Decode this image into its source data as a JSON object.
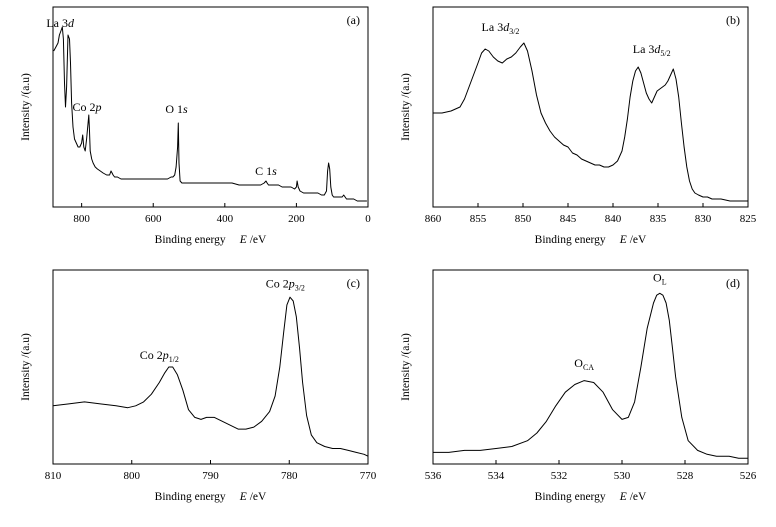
{
  "chart_data": [
    {
      "type": "line",
      "panel_label": "(a)",
      "xlabel_prefix": "Binding energy",
      "xlabel_var": "E",
      "xlabel_unit": "/eV",
      "ylabel": "Intensity /(a.u)",
      "xlim": [
        880,
        0
      ],
      "xticks": [
        800,
        600,
        400,
        200,
        0
      ],
      "ylim": [
        0,
        1
      ],
      "annotations": [
        {
          "text": "La 3",
          "ital": "d",
          "sub": "",
          "x": 860,
          "y": 0.9
        },
        {
          "text": "Co 2",
          "ital": "p",
          "sub": "",
          "x": 785,
          "y": 0.48
        },
        {
          "text": "O 1",
          "ital": "s",
          "sub": "",
          "x": 535,
          "y": 0.47
        },
        {
          "text": "C 1",
          "ital": "s",
          "sub": "",
          "x": 285,
          "y": 0.16
        }
      ],
      "x": [
        878,
        872,
        866,
        862,
        858,
        854,
        851,
        848,
        845,
        842,
        838,
        834,
        831,
        828,
        824,
        820,
        815,
        810,
        805,
        800,
        797,
        794,
        790,
        786,
        783,
        780,
        778,
        776,
        772,
        768,
        762,
        756,
        748,
        740,
        730,
        722,
        718,
        715,
        712,
        708,
        700,
        690,
        680,
        660,
        640,
        620,
        600,
        580,
        560,
        550,
        545,
        540,
        536,
        532,
        530,
        528,
        525,
        520,
        510,
        500,
        480,
        460,
        440,
        420,
        400,
        380,
        360,
        340,
        320,
        300,
        290,
        285,
        282,
        278,
        270,
        260,
        250,
        240,
        230,
        220,
        215,
        205,
        200,
        198,
        195,
        190,
        180,
        170,
        160,
        150,
        140,
        130,
        122,
        116,
        113,
        110,
        107,
        104,
        100,
        96,
        90,
        80,
        72,
        68,
        64,
        60,
        50,
        40,
        30,
        20,
        10,
        3
      ],
      "y": [
        0.78,
        0.8,
        0.82,
        0.86,
        0.88,
        0.9,
        0.84,
        0.62,
        0.5,
        0.6,
        0.86,
        0.84,
        0.72,
        0.52,
        0.4,
        0.34,
        0.32,
        0.3,
        0.3,
        0.32,
        0.36,
        0.3,
        0.28,
        0.34,
        0.4,
        0.46,
        0.38,
        0.28,
        0.24,
        0.22,
        0.2,
        0.19,
        0.18,
        0.17,
        0.16,
        0.16,
        0.18,
        0.17,
        0.16,
        0.15,
        0.15,
        0.14,
        0.14,
        0.14,
        0.14,
        0.14,
        0.14,
        0.14,
        0.14,
        0.15,
        0.15,
        0.16,
        0.2,
        0.3,
        0.42,
        0.22,
        0.13,
        0.12,
        0.12,
        0.12,
        0.12,
        0.12,
        0.12,
        0.12,
        0.12,
        0.12,
        0.11,
        0.11,
        0.11,
        0.11,
        0.12,
        0.13,
        0.12,
        0.11,
        0.11,
        0.11,
        0.11,
        0.1,
        0.1,
        0.1,
        0.1,
        0.09,
        0.1,
        0.13,
        0.1,
        0.08,
        0.07,
        0.07,
        0.07,
        0.07,
        0.07,
        0.06,
        0.06,
        0.08,
        0.18,
        0.22,
        0.19,
        0.1,
        0.06,
        0.05,
        0.05,
        0.05,
        0.05,
        0.06,
        0.05,
        0.04,
        0.04,
        0.04,
        0.03,
        0.03,
        0.03,
        0.03
      ]
    },
    {
      "type": "line",
      "panel_label": "(b)",
      "xlabel_prefix": "Binding energy",
      "xlabel_var": "E",
      "xlabel_unit": "/eV",
      "ylabel": "Intensity /(a.u)",
      "xlim": [
        860,
        825
      ],
      "xticks": [
        860,
        855,
        850,
        845,
        840,
        835,
        830,
        825
      ],
      "ylim": [
        0,
        1
      ],
      "annotations": [
        {
          "text": "La 3",
          "ital": "d",
          "sub": "3/2",
          "x": 852.5,
          "y": 0.88
        },
        {
          "text": "La 3",
          "ital": "d",
          "sub": "5/2",
          "x": 835.7,
          "y": 0.77
        }
      ],
      "x": [
        860,
        859,
        858,
        857,
        856.5,
        856,
        855.5,
        855,
        854.6,
        854.2,
        853.8,
        853.3,
        852.8,
        852.3,
        851.8,
        851.3,
        850.8,
        850.3,
        849.9,
        849.5,
        849,
        848.5,
        848,
        847.5,
        847,
        846.5,
        846,
        845.5,
        845,
        844.5,
        844,
        843.5,
        843,
        842.5,
        842,
        841.5,
        841,
        840.5,
        840,
        839.5,
        839,
        838.7,
        838.4,
        838.1,
        837.8,
        837.5,
        837.2,
        836.9,
        836.6,
        836.3,
        836,
        835.7,
        835.4,
        835.1,
        834.8,
        834.5,
        834.2,
        833.9,
        833.6,
        833.3,
        833,
        832.7,
        832.4,
        832.1,
        831.8,
        831.5,
        831.2,
        830.9,
        830.5,
        830,
        829.5,
        829,
        828,
        827,
        826,
        825
      ],
      "y": [
        0.47,
        0.47,
        0.48,
        0.5,
        0.54,
        0.6,
        0.66,
        0.72,
        0.77,
        0.79,
        0.78,
        0.75,
        0.73,
        0.72,
        0.74,
        0.75,
        0.77,
        0.8,
        0.82,
        0.78,
        0.68,
        0.56,
        0.47,
        0.42,
        0.38,
        0.35,
        0.33,
        0.31,
        0.3,
        0.27,
        0.26,
        0.24,
        0.23,
        0.22,
        0.21,
        0.21,
        0.2,
        0.2,
        0.21,
        0.23,
        0.28,
        0.35,
        0.44,
        0.55,
        0.63,
        0.68,
        0.7,
        0.67,
        0.62,
        0.57,
        0.54,
        0.52,
        0.55,
        0.58,
        0.59,
        0.6,
        0.61,
        0.63,
        0.66,
        0.69,
        0.64,
        0.55,
        0.42,
        0.3,
        0.2,
        0.13,
        0.09,
        0.07,
        0.06,
        0.05,
        0.05,
        0.04,
        0.04,
        0.03,
        0.03,
        0.03
      ]
    },
    {
      "type": "line",
      "panel_label": "(c)",
      "xlabel_prefix": "Binding energy",
      "xlabel_var": "E",
      "xlabel_unit": "/eV",
      "ylabel": "Intensity /(a.u)",
      "xlim": [
        810,
        770
      ],
      "xticks": [
        810,
        800,
        790,
        780,
        770
      ],
      "ylim": [
        0,
        1
      ],
      "annotations": [
        {
          "text": "Co 2",
          "ital": "p",
          "sub": "1/2",
          "x": 796.5,
          "y": 0.54
        },
        {
          "text": "Co 2",
          "ital": "p",
          "sub": "3/2",
          "x": 780.5,
          "y": 0.91
        }
      ],
      "x": [
        810,
        808,
        806,
        804,
        802,
        800.5,
        799.5,
        798.5,
        797.5,
        796.5,
        795.8,
        795.3,
        794.8,
        794.2,
        793.5,
        792.8,
        792,
        791.2,
        790.5,
        789.5,
        788.5,
        787.5,
        786.5,
        785.5,
        784.5,
        783.5,
        782.5,
        781.8,
        781.2,
        780.7,
        780.3,
        779.9,
        779.5,
        779.1,
        778.7,
        778.3,
        777.8,
        777.2,
        776.5,
        775.5,
        774.5,
        773.5,
        772.5,
        771.5,
        770.5,
        770
      ],
      "y": [
        0.3,
        0.31,
        0.32,
        0.31,
        0.3,
        0.29,
        0.3,
        0.32,
        0.36,
        0.42,
        0.47,
        0.5,
        0.5,
        0.46,
        0.38,
        0.28,
        0.24,
        0.23,
        0.24,
        0.24,
        0.22,
        0.2,
        0.18,
        0.18,
        0.19,
        0.22,
        0.27,
        0.35,
        0.5,
        0.68,
        0.82,
        0.86,
        0.84,
        0.76,
        0.6,
        0.42,
        0.25,
        0.15,
        0.11,
        0.09,
        0.08,
        0.08,
        0.07,
        0.06,
        0.05,
        0.04
      ]
    },
    {
      "type": "line",
      "panel_label": "(d)",
      "xlabel_prefix": "Binding energy",
      "xlabel_var": "E",
      "xlabel_unit": "/eV",
      "ylabel": "Intensity /(a.u)",
      "xlim": [
        536,
        526
      ],
      "xticks": [
        536,
        534,
        532,
        530,
        528,
        526
      ],
      "ylim": [
        0,
        1
      ],
      "annotations": [
        {
          "text": "O",
          "ital": "",
          "sub": "CA",
          "x": 531.2,
          "y": 0.5
        },
        {
          "text": "O",
          "ital": "",
          "sub": "L",
          "x": 528.8,
          "y": 0.94
        }
      ],
      "x": [
        536,
        535.5,
        535,
        534.5,
        534,
        533.5,
        533,
        532.7,
        532.4,
        532.1,
        531.8,
        531.5,
        531.2,
        530.9,
        530.6,
        530.3,
        530,
        529.8,
        529.6,
        529.4,
        529.2,
        529,
        528.9,
        528.8,
        528.7,
        528.6,
        528.5,
        528.4,
        528.3,
        528.1,
        527.9,
        527.6,
        527.3,
        527,
        526.6,
        526.3,
        526
      ],
      "y": [
        0.06,
        0.06,
        0.07,
        0.07,
        0.08,
        0.09,
        0.12,
        0.16,
        0.22,
        0.3,
        0.37,
        0.41,
        0.43,
        0.42,
        0.37,
        0.28,
        0.23,
        0.24,
        0.32,
        0.5,
        0.7,
        0.83,
        0.87,
        0.88,
        0.87,
        0.83,
        0.74,
        0.6,
        0.45,
        0.24,
        0.12,
        0.07,
        0.05,
        0.04,
        0.04,
        0.03,
        0.03
      ]
    }
  ]
}
